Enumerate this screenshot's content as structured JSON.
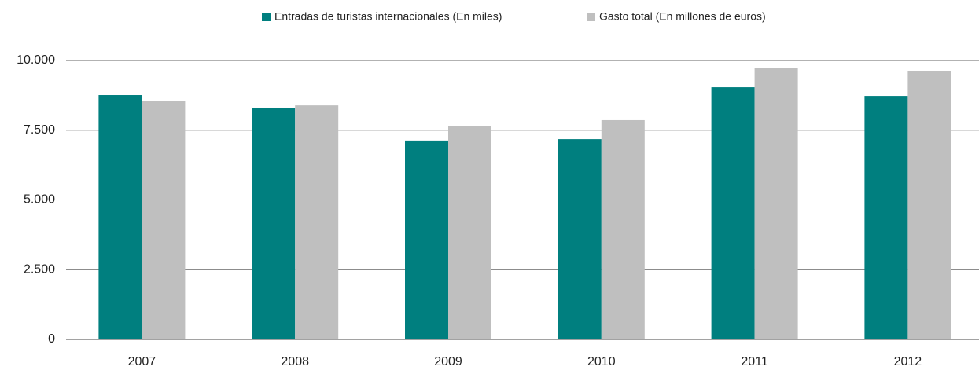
{
  "chart_data": {
    "type": "bar",
    "categories": [
      "2007",
      "2008",
      "2009",
      "2010",
      "2011",
      "2012"
    ],
    "series": [
      {
        "name": "Entradas de turistas internacionales (En miles)",
        "color": "#007f7f",
        "values": [
          8760,
          8310,
          7130,
          7180,
          9040,
          8730
        ]
      },
      {
        "name": "Gasto total (En millones de euros)",
        "color": "#bfbfbf",
        "values": [
          8540,
          8390,
          7660,
          7860,
          9720,
          9630
        ]
      }
    ],
    "ylim": [
      0,
      10000
    ],
    "yticks": [
      0,
      {
        "value": 2500,
        "label": "2.500"
      },
      {
        "value": 5000,
        "label": "5.000"
      },
      {
        "value": 7500,
        "label": "7.500"
      },
      {
        "value": 10000,
        "label": "10.000"
      }
    ],
    "grid": true,
    "legend": "top"
  }
}
